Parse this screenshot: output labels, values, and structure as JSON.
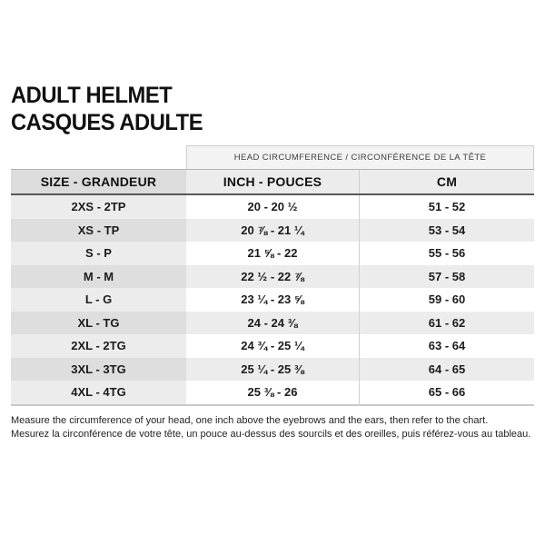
{
  "page": {
    "title_line1": "ADULT HELMET",
    "title_line2": "CASQUES ADULTE"
  },
  "table": {
    "span_header": "HEAD CIRCUMFERENCE / CIRCONFÉRENCE DE LA TÊTE",
    "columns": [
      "SIZE - GRANDEUR",
      "INCH - POUCES",
      "CM"
    ],
    "rows": [
      {
        "size": "2XS - 2TP",
        "inch": "20 - 20 ½",
        "cm": "51 - 52"
      },
      {
        "size": "XS - TP",
        "inch": "20 ⅞ - 21 ¼",
        "cm": "53 - 54"
      },
      {
        "size": "S - P",
        "inch": "21 ⅝ - 22",
        "cm": "55 - 56"
      },
      {
        "size": "M - M",
        "inch": "22 ½ - 22 ⅞",
        "cm": "57 - 58"
      },
      {
        "size": "L - G",
        "inch": "23 ¼ - 23 ⅝",
        "cm": "59 - 60"
      },
      {
        "size": "XL - TG",
        "inch": "24 - 24 ⅜",
        "cm": "61 - 62"
      },
      {
        "size": "2XL - 2TG",
        "inch": "24 ¾ - 25 ¼",
        "cm": "63 - 64"
      },
      {
        "size": "3XL - 3TG",
        "inch": "25 ¼ - 25 ⅜",
        "cm": "64 - 65"
      },
      {
        "size": "4XL - 4TG",
        "inch": "25 ⅜ - 26",
        "cm": "65 - 66"
      }
    ]
  },
  "footer": {
    "line1_en": "Measure the circumference of your head, one inch above the eyebrows and the ears, then refer to the chart.",
    "line2_fr": "Mesurez la circonférence de votre tête, un pouce au-dessus des sourcils et des oreilles, puis référez-vous au tableau."
  },
  "colors": {
    "background": "#ffffff",
    "header_cell_dark": "#dcdcdc",
    "header_cell_light": "#ececec",
    "row_stripe": "#ececec",
    "row_stripe_dark": "#dedede",
    "header_underline": "#58585a",
    "table_bottom_border": "#c9c9c9",
    "text": "#1a1a1a"
  }
}
